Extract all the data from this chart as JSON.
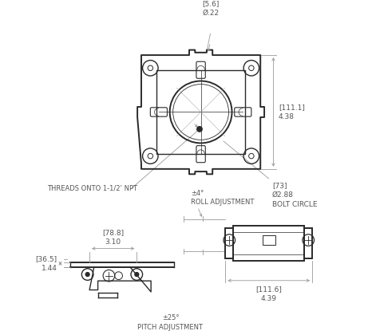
{
  "bg_color": "#ffffff",
  "line_color": "#2a2a2a",
  "dim_color": "#999999",
  "text_color": "#555555",
  "annotations": {
    "hole_diam": "[5.6]\nØ.22",
    "height_dim": "[111.1]\n4.38",
    "bolt_circle": "[73]\nØ2.88\nBOLT CIRCLE",
    "threads": "THREADS ONTO 1-1/2’ NPT",
    "width_dim": "[78.8]\n3.10",
    "height2_dim": "[36.5]\n1.44",
    "pitch": "±25°\nPITCH ADJUSTMENT",
    "roll": "±4°\nROLL ADJUSTMENT",
    "length_dim": "[111.6]\n4.39"
  }
}
